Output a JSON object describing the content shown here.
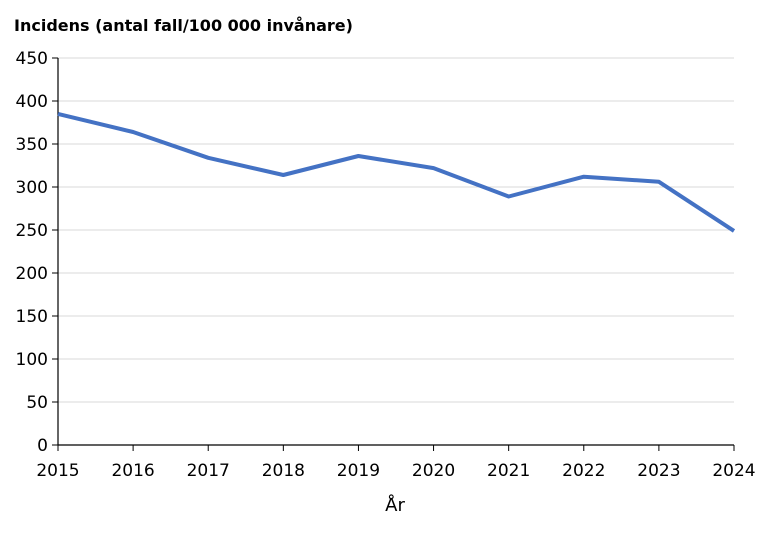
{
  "chart_data": {
    "type": "line",
    "title": "",
    "ylabel": "Incidens (antal fall/100 000 invånare)",
    "xlabel": "År",
    "x": [
      "2015",
      "2016",
      "2017",
      "2018",
      "2019",
      "2020",
      "2021",
      "2022",
      "2023",
      "2024"
    ],
    "series": [
      {
        "values": [
          385,
          364,
          334,
          314,
          336,
          322,
          289,
          312,
          306,
          249
        ],
        "color": "#4472C4"
      }
    ],
    "ylim": [
      0,
      450
    ],
    "yticks": [
      0,
      50,
      100,
      150,
      200,
      250,
      300,
      350,
      400,
      450
    ],
    "grid": "horizontal",
    "legend": "none"
  }
}
